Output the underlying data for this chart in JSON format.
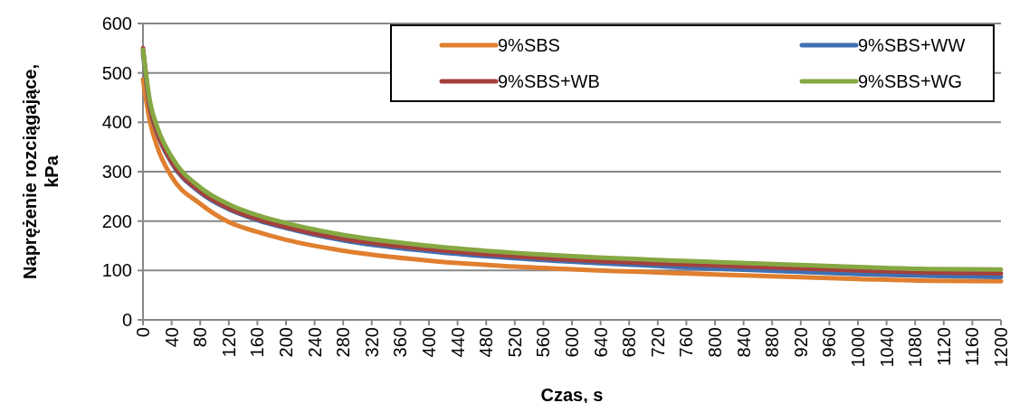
{
  "chart_data": {
    "type": "line",
    "xlabel": "Czas, s",
    "ylabel": "Naprężenie rozciągające,\nkPa",
    "x": [
      0,
      10,
      20,
      40,
      80,
      120,
      160,
      200,
      280,
      400,
      560,
      800,
      1000,
      1100,
      1200
    ],
    "series": [
      {
        "name": "9%SBS",
        "color": "#e07f2f",
        "values": [
          487,
          400,
          350,
          290,
          235,
          198,
          178,
          162,
          140,
          120,
          105,
          92,
          83,
          79,
          78
        ]
      },
      {
        "name": "9%SBS+WW",
        "color": "#3f6fb2",
        "values": [
          540,
          428,
          378,
          318,
          258,
          224,
          202,
          186,
          161,
          139,
          121,
          104,
          93,
          89,
          87
        ]
      },
      {
        "name": "9%SBS+WB",
        "color": "#a5403d",
        "values": [
          550,
          430,
          380,
          320,
          260,
          226,
          204,
          188,
          164,
          143,
          125,
          110,
          100,
          96,
          94
        ]
      },
      {
        "name": "9%SBS+WG",
        "color": "#86a843",
        "values": [
          547,
          440,
          390,
          330,
          268,
          234,
          212,
          196,
          172,
          150,
          132,
          117,
          107,
          103,
          102
        ]
      }
    ],
    "xlim": [
      0,
      1200
    ],
    "xticks": [
      0,
      40,
      80,
      120,
      160,
      200,
      240,
      280,
      320,
      360,
      400,
      440,
      480,
      520,
      560,
      600,
      640,
      680,
      720,
      760,
      800,
      840,
      880,
      920,
      960,
      1000,
      1040,
      1080,
      1120,
      1160,
      1200
    ],
    "ylim": [
      0,
      600
    ],
    "yticks": [
      0,
      100,
      200,
      300,
      400,
      500,
      600
    ],
    "grid": "y",
    "legend": "top right",
    "marker": "none",
    "line_style": "solid"
  }
}
